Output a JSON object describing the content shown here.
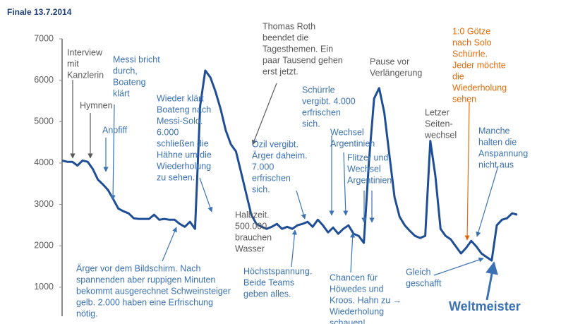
{
  "chart_data": {
    "type": "line",
    "title": "Finale 13.7.2014",
    "color": "#1f4e96",
    "ylim": [
      350,
      7000
    ],
    "yticks": [
      1000,
      2000,
      3000,
      4000,
      5000,
      6000,
      7000
    ],
    "values": [
      4060,
      4030,
      4030,
      3940,
      4060,
      4030,
      3855,
      3600,
      3480,
      3345,
      3125,
      2900,
      2835,
      2785,
      2665,
      2650,
      2650,
      2650,
      2750,
      2630,
      2650,
      2630,
      2630,
      2530,
      2460,
      2580,
      2410,
      5385,
      6235,
      6065,
      5725,
      5300,
      4790,
      4450,
      4280,
      3770,
      3260,
      2750,
      2530,
      2460,
      2410,
      2460,
      2530,
      2410,
      2460,
      2410,
      2495,
      2530,
      2580,
      2460,
      2630,
      2495,
      2325,
      2440,
      2290,
      2410,
      2495,
      2290,
      2240,
      2070,
      4025,
      5555,
      5810,
      5215,
      4195,
      3175,
      2700,
      2495,
      2360,
      2240,
      2190,
      2240,
      4535,
      3685,
      2410,
      2240,
      2155,
      1985,
      1815,
      1950,
      2120,
      1985,
      1815,
      1730,
      1645,
      2495,
      2630,
      2665,
      2785,
      2750
    ],
    "annotations": [
      {
        "lines": [
          "Interview",
          "mit",
          "Kanzlerin"
        ],
        "color": "#595959"
      },
      {
        "lines": [
          "Hymnen"
        ],
        "color": "#595959"
      },
      {
        "lines": [
          "Anpfiff"
        ],
        "color": "#3b72b5"
      },
      {
        "lines": [
          "Messi bricht",
          "durch,",
          "Boateng",
          "klärt"
        ],
        "color": "#3b72b5"
      },
      {
        "lines": [
          "Wieder klärt",
          "Boateng nach",
          "Messi-Solo.",
          "6.000",
          "schließen die",
          "Hähne um die",
          "Wiederholung",
          "zu sehen."
        ],
        "color": "#3b72b5"
      },
      {
        "lines": [
          "Ärger vor dem Bildschirm. Nach",
          "spannenden aber ruppigen Minuten",
          "bekommt ausgerechnet Schweinsteiger",
          "gelb. 2.000 haben eine Erfrischung",
          "nötig."
        ],
        "color": "#3b72b5"
      },
      {
        "lines": [
          "Halbzeit.",
          "500.000",
          "brauchen",
          "Wasser"
        ],
        "color": "#595959"
      },
      {
        "lines": [
          "Thomas Roth",
          "beendet die",
          "Tagesthemen. Ein",
          "paar Tausend gehen",
          "erst jetzt."
        ],
        "color": "#595959"
      },
      {
        "lines": [
          "Özil vergibt.",
          "Ärger daheim.",
          "7.000",
          "erfrischen",
          "sich."
        ],
        "color": "#3b72b5"
      },
      {
        "lines": [
          "Höchstspannung.",
          "Beide Teams",
          "geben alles."
        ],
        "color": "#3b72b5"
      },
      {
        "lines": [
          "Schürrle",
          "vergibt. 4.000",
          "erfrischen",
          "sich."
        ],
        "color": "#3b72b5"
      },
      {
        "lines": [
          "Wechsel",
          "Argentinien"
        ],
        "color": "#3b72b5"
      },
      {
        "lines": [
          "Flitzer und",
          "Wechsel",
          "Argentinien"
        ],
        "color": "#3b72b5"
      },
      {
        "lines": [
          "Chancen für",
          "Höwedes und",
          "Kroos. Hahn zu →",
          "Wiederholung",
          "schauen!"
        ],
        "color": "#3b72b5"
      },
      {
        "lines": [
          "Pause vor",
          "Verlängerung"
        ],
        "color": "#595959"
      },
      {
        "lines": [
          "Letzer",
          "Seiten-",
          "wechsel"
        ],
        "color": "#595959"
      },
      {
        "lines": [
          "1:0 Götze",
          "nach Solo",
          "Schürrle.",
          "Jeder möchte",
          "die",
          "Wiederholung",
          "sehen"
        ],
        "color": "#e36c0a"
      },
      {
        "lines": [
          "Manche",
          "halten die",
          "Anspannung",
          "nicht aus"
        ],
        "color": "#3b72b5"
      },
      {
        "lines": [
          "Gleich",
          "geschafft"
        ],
        "color": "#3b72b5"
      },
      {
        "lines": [
          "Weltmeister"
        ],
        "color": "#3b72b5"
      }
    ]
  }
}
